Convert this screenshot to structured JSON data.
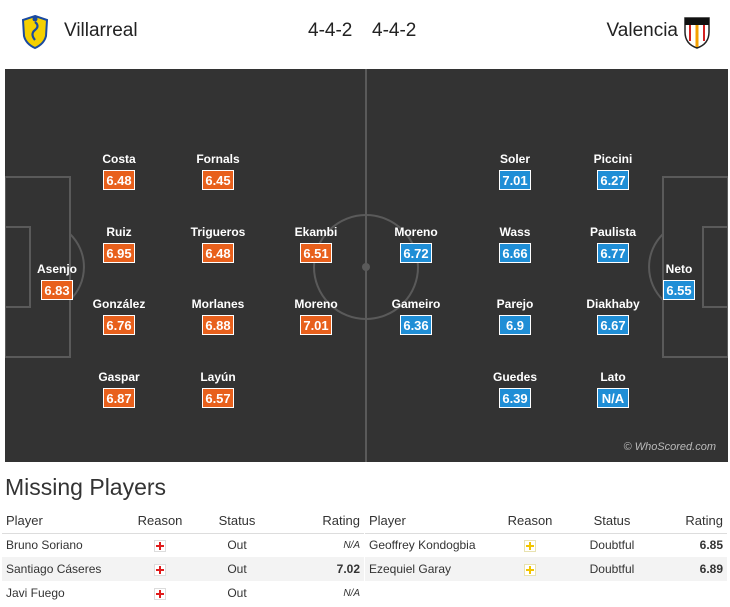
{
  "header": {
    "home_team": "Villarreal",
    "away_team": "Valencia",
    "home_formation": "4-4-2",
    "away_formation": "4-4-2"
  },
  "colors": {
    "pitch": "#333333",
    "home_rating": "#e8601c",
    "away_rating": "#1f8ed6"
  },
  "icons": {
    "home_badge": "villarreal-crest-icon",
    "away_badge": "valencia-crest-icon",
    "injury": "red-cross-icon",
    "doubtful": "yellow-cross-icon"
  },
  "home_players": [
    {
      "name": "Asenjo",
      "rating": "6.83"
    },
    {
      "name": "Costa",
      "rating": "6.48"
    },
    {
      "name": "Ruiz",
      "rating": "6.95"
    },
    {
      "name": "González",
      "rating": "6.76"
    },
    {
      "name": "Gaspar",
      "rating": "6.87"
    },
    {
      "name": "Fornals",
      "rating": "6.45"
    },
    {
      "name": "Trigueros",
      "rating": "6.48"
    },
    {
      "name": "Morlanes",
      "rating": "6.88"
    },
    {
      "name": "Layún",
      "rating": "6.57"
    },
    {
      "name": "Ekambi",
      "rating": "6.51"
    },
    {
      "name": "Moreno",
      "rating": "7.01"
    }
  ],
  "away_players": [
    {
      "name": "Neto",
      "rating": "6.55"
    },
    {
      "name": "Piccini",
      "rating": "6.27"
    },
    {
      "name": "Paulista",
      "rating": "6.77"
    },
    {
      "name": "Diakhaby",
      "rating": "6.67"
    },
    {
      "name": "Lato",
      "rating": "N/A"
    },
    {
      "name": "Soler",
      "rating": "7.01"
    },
    {
      "name": "Wass",
      "rating": "6.66"
    },
    {
      "name": "Parejo",
      "rating": "6.9"
    },
    {
      "name": "Guedes",
      "rating": "6.39"
    },
    {
      "name": "Moreno",
      "rating": "6.72"
    },
    {
      "name": "Gameiro",
      "rating": "6.36"
    }
  ],
  "watermark": "© WhoScored.com",
  "missing": {
    "title": "Missing Players",
    "columns": {
      "player": "Player",
      "reason": "Reason",
      "status": "Status",
      "rating": "Rating"
    },
    "home": [
      {
        "player": "Bruno Soriano",
        "status": "Out",
        "rating": "N/A"
      },
      {
        "player": "Santiago Cáseres",
        "status": "Out",
        "rating": "7.02"
      },
      {
        "player": "Javi Fuego",
        "status": "Out",
        "rating": "N/A"
      }
    ],
    "away": [
      {
        "player": "Geoffrey Kondogbia",
        "status": "Doubtful",
        "rating": "6.85"
      },
      {
        "player": "Ezequiel Garay",
        "status": "Doubtful",
        "rating": "6.89"
      }
    ]
  }
}
